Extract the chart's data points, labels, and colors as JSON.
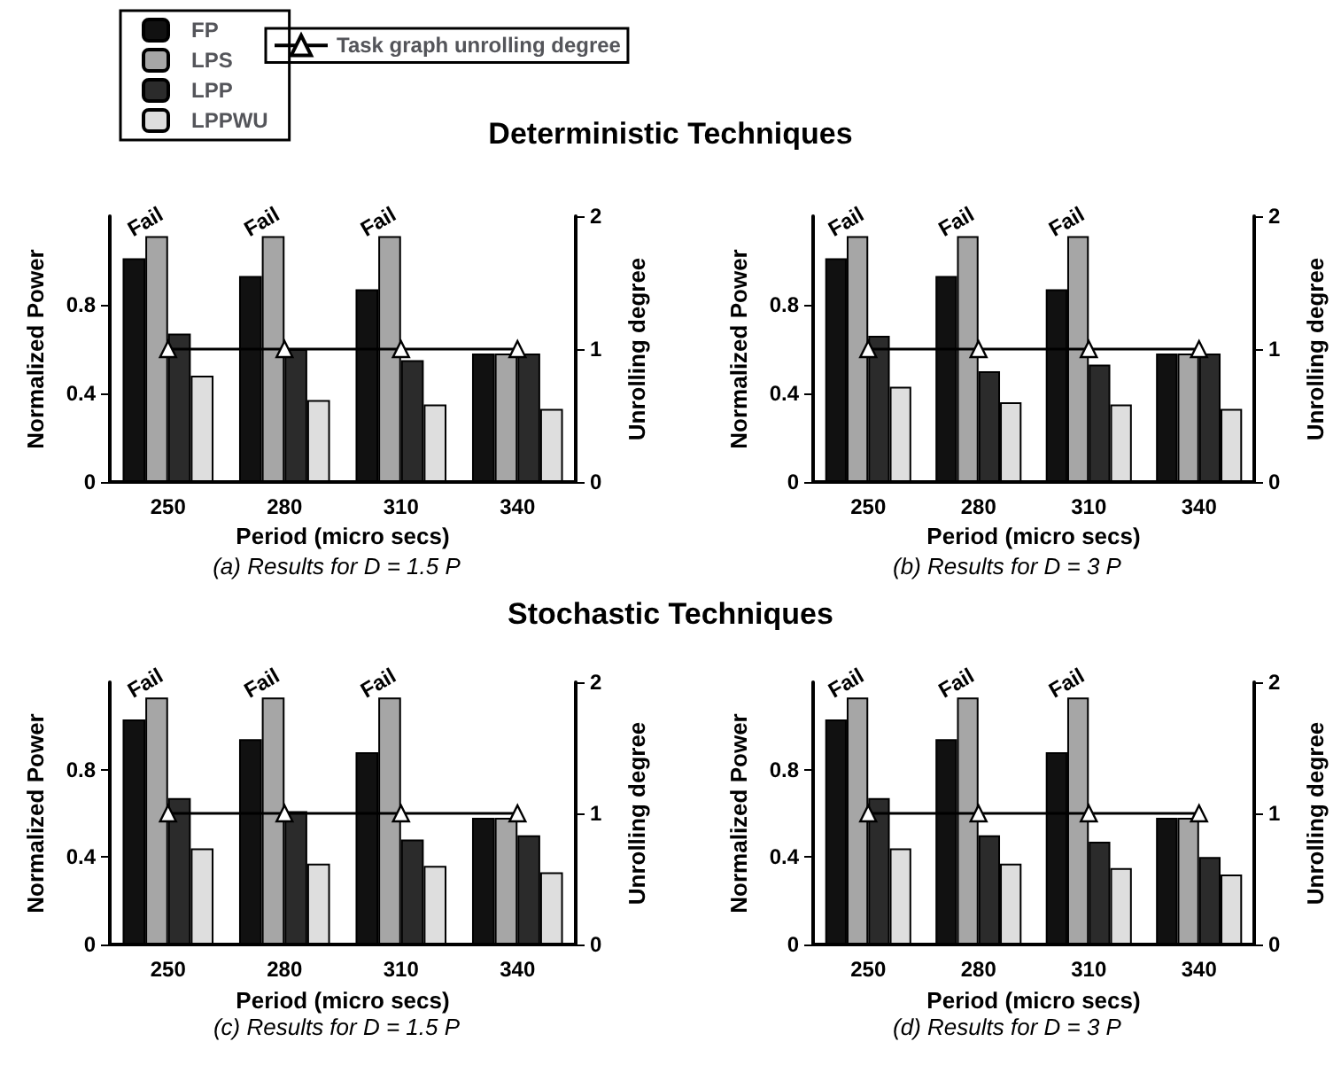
{
  "chart_data": [
    {
      "type": "bar",
      "title": "Deterministic Techniques",
      "xlabel": "Period (micro secs)",
      "ylabel": "Normalized Power",
      "y2label": "Unrolling degree",
      "categories": [
        "250",
        "280",
        "310",
        "340"
      ],
      "ylim": [
        0,
        1.2
      ],
      "yticks": [
        0,
        0.4,
        0.8
      ],
      "y2lim": [
        0,
        2
      ],
      "y2ticks": [
        0,
        1,
        2
      ],
      "grid": false,
      "legend": "top",
      "series": [
        {
          "name": "FP",
          "color": "#111111",
          "values": [
            1.01,
            0.93,
            0.87,
            0.58
          ]
        },
        {
          "name": "LPS",
          "color": "#a6a6a6",
          "values": [
            1.11,
            1.11,
            1.11,
            0.58
          ]
        },
        {
          "name": "LPP",
          "color": "#2b2b2b",
          "values": [
            0.67,
            0.6,
            0.55,
            0.58
          ]
        },
        {
          "name": "LPPWU",
          "color": "#dedede",
          "values": [
            0.48,
            0.37,
            0.35,
            0.33
          ]
        },
        {
          "name": "Task graph unrolling degree",
          "type": "line",
          "axis": "y2",
          "color": "#000000",
          "marker": "triangle",
          "values": [
            1,
            1,
            1,
            1
          ]
        }
      ],
      "annotations": [
        {
          "text": "Fail",
          "x": "250",
          "y": 1.11
        },
        {
          "text": "Fail",
          "x": "280",
          "y": 1.11
        },
        {
          "text": "Fail",
          "x": "310",
          "y": 1.11
        },
        "(a) Results for D = 1.5 P"
      ]
    },
    {
      "type": "bar",
      "xlabel": "Period (micro secs)",
      "ylabel": "Normalized Power",
      "y2label": "Unrolling degree",
      "categories": [
        "250",
        "280",
        "310",
        "340"
      ],
      "ylim": [
        0,
        1.2
      ],
      "yticks": [
        0,
        0.4,
        0.8
      ],
      "y2lim": [
        0,
        2
      ],
      "y2ticks": [
        0,
        1,
        2
      ],
      "grid": false,
      "legend": false,
      "series": [
        {
          "color": "#111111",
          "values": [
            1.01,
            0.93,
            0.87,
            0.58
          ]
        },
        {
          "color": "#a6a6a6",
          "values": [
            1.11,
            1.11,
            1.11,
            0.58
          ]
        },
        {
          "color": "#2b2b2b",
          "values": [
            0.66,
            0.5,
            0.53,
            0.58
          ]
        },
        {
          "color": "#dedede",
          "values": [
            0.43,
            0.36,
            0.35,
            0.33
          ]
        },
        {
          "type": "line",
          "axis": "y2",
          "color": "#000000",
          "marker": "triangle",
          "values": [
            1,
            1,
            1,
            1
          ]
        }
      ],
      "annotations": [
        {
          "text": "Fail",
          "x": "250",
          "y": 1.11
        },
        {
          "text": "Fail",
          "x": "280",
          "y": 1.11
        },
        {
          "text": "Fail",
          "x": "310",
          "y": 1.11
        },
        "(b) Results for D = 3 P"
      ]
    },
    {
      "type": "bar",
      "title": "Stochastic Techniques",
      "xlabel": "Period (micro secs)",
      "ylabel": "Normalized Power",
      "y2label": "Unrolling degree",
      "categories": [
        "250",
        "280",
        "310",
        "340"
      ],
      "ylim": [
        0,
        1.2
      ],
      "yticks": [
        0,
        0.4,
        0.8
      ],
      "y2lim": [
        0,
        2
      ],
      "y2ticks": [
        0,
        1,
        2
      ],
      "grid": false,
      "legend": false,
      "series": [
        {
          "color": "#111111",
          "values": [
            1.03,
            0.94,
            0.88,
            0.58
          ]
        },
        {
          "color": "#a6a6a6",
          "values": [
            1.13,
            1.13,
            1.13,
            0.58
          ]
        },
        {
          "color": "#2b2b2b",
          "values": [
            0.67,
            0.61,
            0.48,
            0.5
          ]
        },
        {
          "color": "#dedede",
          "values": [
            0.44,
            0.37,
            0.36,
            0.33
          ]
        },
        {
          "type": "line",
          "axis": "y2",
          "color": "#000000",
          "marker": "triangle",
          "values": [
            1,
            1,
            1,
            1
          ]
        }
      ],
      "annotations": [
        {
          "text": "Fail",
          "x": "250",
          "y": 1.13
        },
        {
          "text": "Fail",
          "x": "280",
          "y": 1.13
        },
        {
          "text": "Fail",
          "x": "310",
          "y": 1.13
        },
        "(c) Results for D = 1.5 P"
      ]
    },
    {
      "type": "bar",
      "xlabel": "Period (micro secs)",
      "ylabel": "Normalized Power",
      "y2label": "Unrolling degree",
      "categories": [
        "250",
        "280",
        "310",
        "340"
      ],
      "ylim": [
        0,
        1.2
      ],
      "yticks": [
        0,
        0.4,
        0.8
      ],
      "y2lim": [
        0,
        2
      ],
      "y2ticks": [
        0,
        1,
        2
      ],
      "grid": false,
      "legend": false,
      "series": [
        {
          "color": "#111111",
          "values": [
            1.03,
            0.94,
            0.88,
            0.58
          ]
        },
        {
          "color": "#a6a6a6",
          "values": [
            1.13,
            1.13,
            1.13,
            0.58
          ]
        },
        {
          "color": "#2b2b2b",
          "values": [
            0.67,
            0.5,
            0.47,
            0.4
          ]
        },
        {
          "color": "#dedede",
          "values": [
            0.44,
            0.37,
            0.35,
            0.32
          ]
        },
        {
          "type": "line",
          "axis": "y2",
          "color": "#000000",
          "marker": "triangle",
          "values": [
            1,
            1,
            1,
            1
          ]
        }
      ],
      "annotations": [
        {
          "text": "Fail",
          "x": "250",
          "y": 1.13
        },
        {
          "text": "Fail",
          "x": "280",
          "y": 1.13
        },
        {
          "text": "Fail",
          "x": "310",
          "y": 1.13
        },
        "(d) Results for D = 3 P"
      ]
    }
  ]
}
